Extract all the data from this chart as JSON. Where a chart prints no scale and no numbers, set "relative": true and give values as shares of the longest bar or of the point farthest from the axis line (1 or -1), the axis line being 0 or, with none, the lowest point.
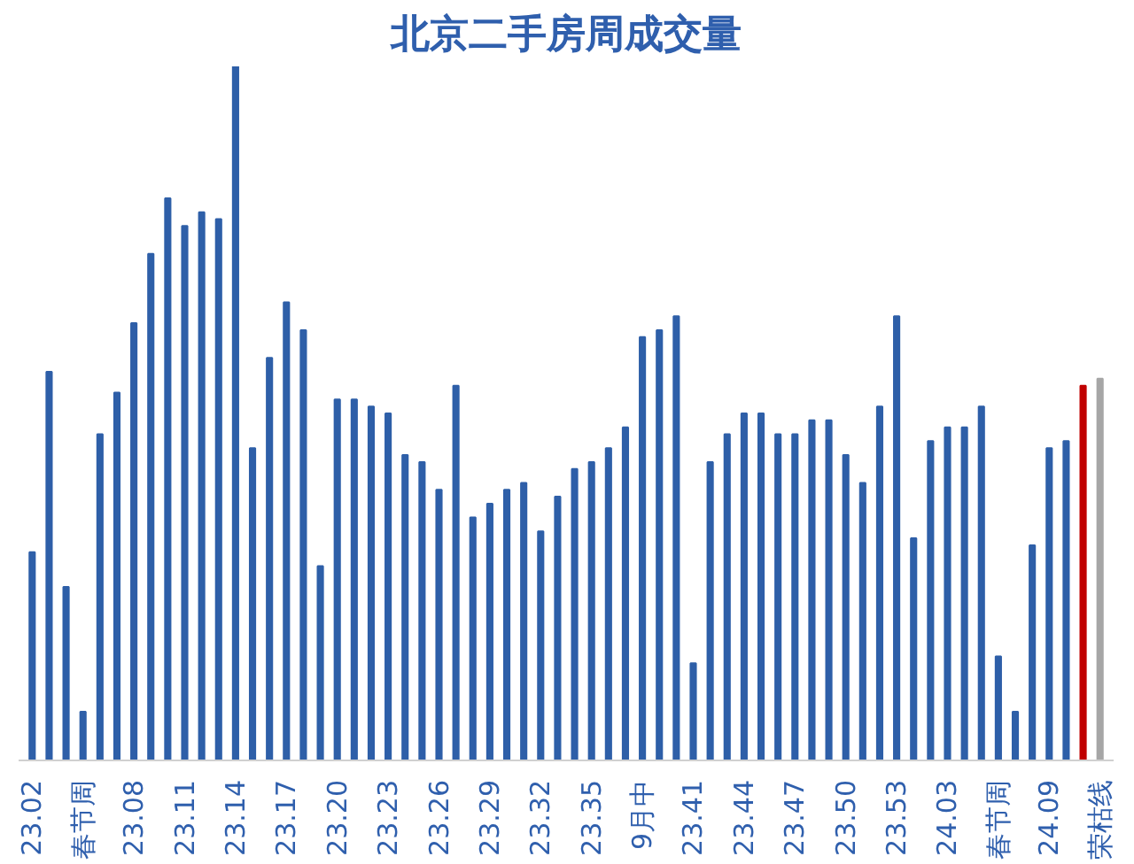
{
  "chart_data": {
    "type": "bar",
    "title": "北京二手房周成交量",
    "relative": true,
    "categories": [
      "23.02",
      null,
      null,
      "春节周",
      null,
      null,
      "23.08",
      null,
      null,
      "23.11",
      null,
      null,
      "23.14",
      null,
      null,
      "23.17",
      null,
      null,
      "23.20",
      null,
      null,
      "23.23",
      null,
      null,
      "23.26",
      null,
      null,
      "23.29",
      null,
      null,
      "23.32",
      null,
      null,
      "23.35",
      null,
      null,
      "9月中",
      null,
      null,
      "23.41",
      null,
      null,
      "23.44",
      null,
      null,
      "23.47",
      null,
      null,
      "23.50",
      null,
      null,
      "23.53",
      null,
      null,
      "24.03",
      null,
      null,
      "春节周",
      null,
      null,
      "24.09",
      null,
      null,
      "荣枯线"
    ],
    "values": [
      0.3,
      0.56,
      0.25,
      0.07,
      0.47,
      0.53,
      0.63,
      0.73,
      0.81,
      0.77,
      0.79,
      0.78,
      1.0,
      0.45,
      0.58,
      0.66,
      0.62,
      0.28,
      0.52,
      0.52,
      0.51,
      0.5,
      0.44,
      0.43,
      0.39,
      0.54,
      0.35,
      0.37,
      0.39,
      0.4,
      0.33,
      0.38,
      0.42,
      0.43,
      0.45,
      0.48,
      0.61,
      0.62,
      0.64,
      0.14,
      0.43,
      0.47,
      0.5,
      0.5,
      0.47,
      0.47,
      0.49,
      0.49,
      0.44,
      0.4,
      0.51,
      0.64,
      0.32,
      0.46,
      0.48,
      0.48,
      0.51,
      0.15,
      0.07,
      0.31,
      0.45,
      0.46,
      0.54,
      0.55
    ],
    "colors": [
      "#2e5fa8",
      "#2e5fa8",
      "#2e5fa8",
      "#2e5fa8",
      "#2e5fa8",
      "#2e5fa8",
      "#2e5fa8",
      "#2e5fa8",
      "#2e5fa8",
      "#2e5fa8",
      "#2e5fa8",
      "#2e5fa8",
      "#2e5fa8",
      "#2e5fa8",
      "#2e5fa8",
      "#2e5fa8",
      "#2e5fa8",
      "#2e5fa8",
      "#2e5fa8",
      "#2e5fa8",
      "#2e5fa8",
      "#2e5fa8",
      "#2e5fa8",
      "#2e5fa8",
      "#2e5fa8",
      "#2e5fa8",
      "#2e5fa8",
      "#2e5fa8",
      "#2e5fa8",
      "#2e5fa8",
      "#2e5fa8",
      "#2e5fa8",
      "#2e5fa8",
      "#2e5fa8",
      "#2e5fa8",
      "#2e5fa8",
      "#2e5fa8",
      "#2e5fa8",
      "#2e5fa8",
      "#2e5fa8",
      "#2e5fa8",
      "#2e5fa8",
      "#2e5fa8",
      "#2e5fa8",
      "#2e5fa8",
      "#2e5fa8",
      "#2e5fa8",
      "#2e5fa8",
      "#2e5fa8",
      "#2e5fa8",
      "#2e5fa8",
      "#2e5fa8",
      "#2e5fa8",
      "#2e5fa8",
      "#2e5fa8",
      "#2e5fa8",
      "#2e5fa8",
      "#2e5fa8",
      "#2e5fa8",
      "#2e5fa8",
      "#2e5fa8",
      "#2e5fa8",
      "#c00000",
      "#a6a6a6"
    ]
  }
}
